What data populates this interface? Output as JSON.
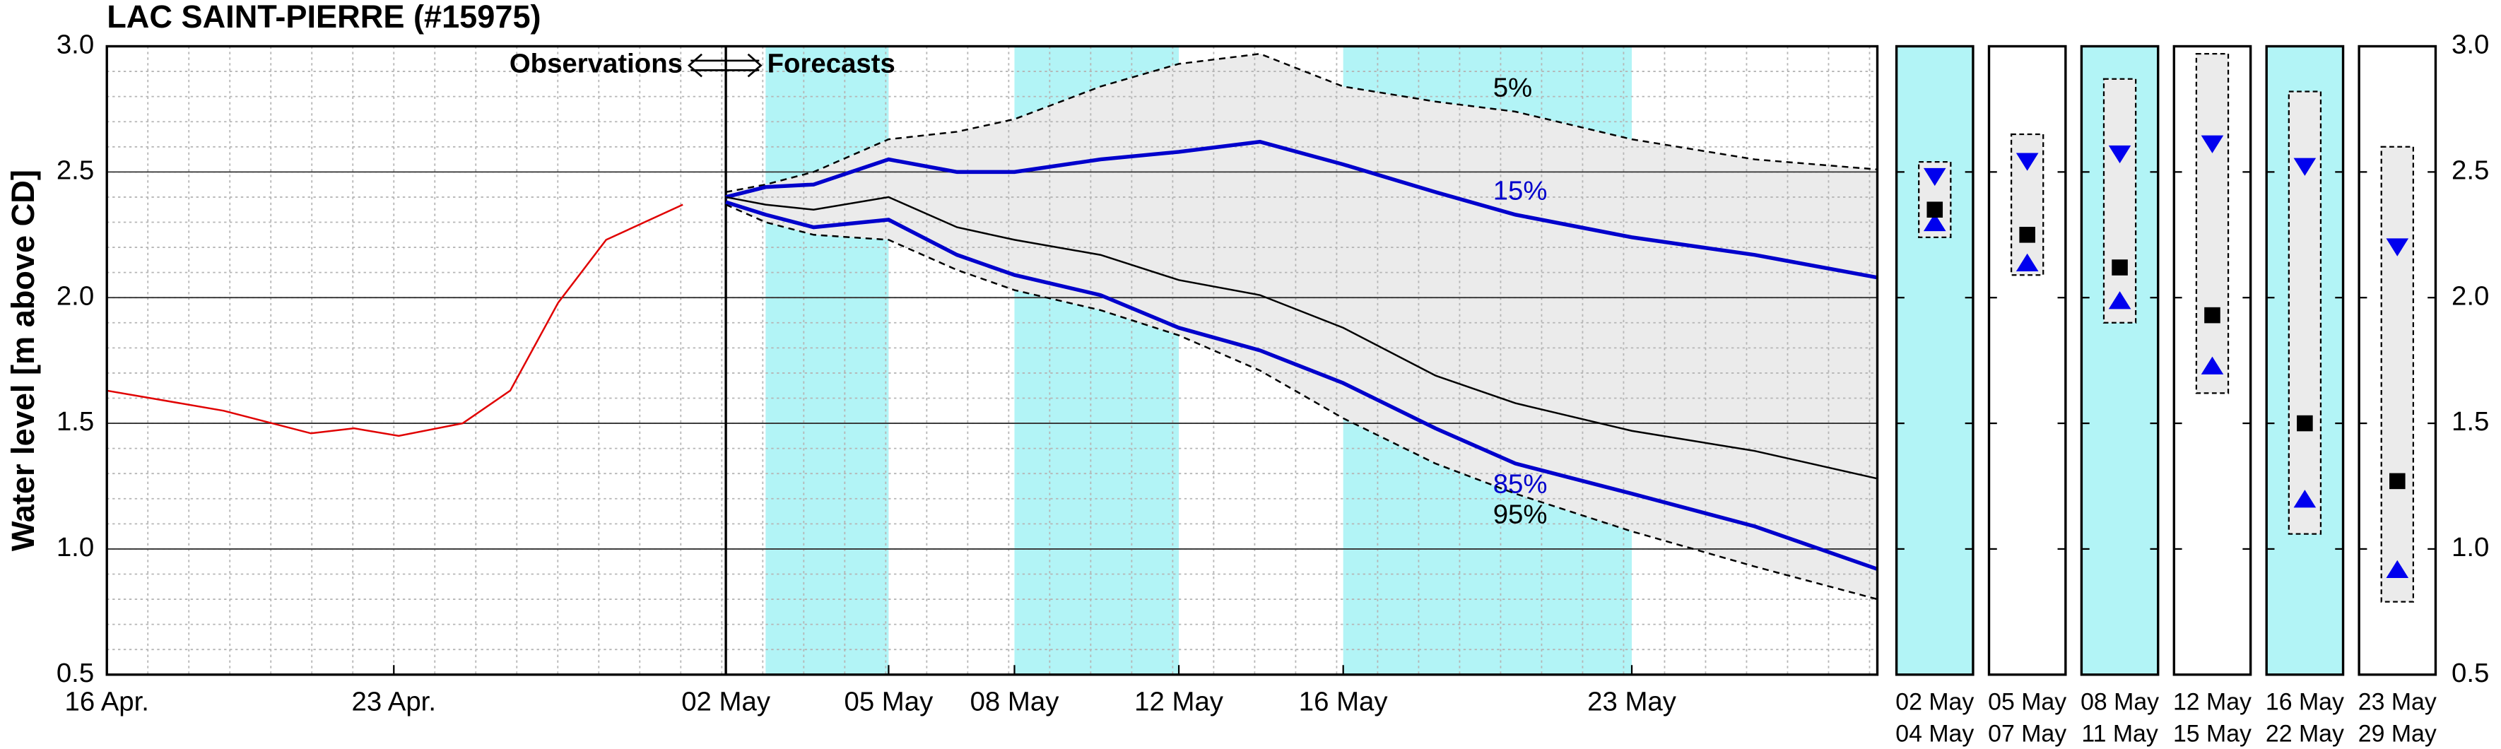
{
  "chart_data": [
    {
      "type": "line",
      "title": "LAC SAINT-PIERRE (#15975)",
      "y_label": "Water level [m above CD]",
      "annotation_left": "Observations",
      "annotation_right": "Forecasts",
      "divider_x": 15.1,
      "xlim": [
        0,
        43.19
      ],
      "xticks": [
        {
          "value": 0,
          "label": "16 Apr."
        },
        {
          "value": 7,
          "label": "23 Apr."
        },
        {
          "value": 15.1,
          "label": "02 May"
        },
        {
          "value": 19.07,
          "label": "05 May"
        },
        {
          "value": 22.14,
          "label": "08 May"
        },
        {
          "value": 26.15,
          "label": "12 May"
        },
        {
          "value": 30.16,
          "label": "16 May"
        },
        {
          "value": 37.2,
          "label": "23 May"
        }
      ],
      "ylim": [
        0.5,
        3.0
      ],
      "yticks": [
        0.5,
        {
          "value": 1.0,
          "label": "1.0"
        },
        1.5,
        {
          "value": 2.0,
          "label": "2.0"
        },
        2.5,
        {
          "value": 3.0,
          "label": "3.0"
        }
      ],
      "grid": true,
      "minor_grid": {
        "x": 1,
        "y": 0.1
      },
      "shaded_periods": [
        [
          16.07,
          19.07
        ],
        [
          22.14,
          26.15
        ],
        [
          30.16,
          37.2
        ]
      ],
      "shade_color": "#b2f4f6",
      "band_color": "#ebebeb",
      "series": [
        {
          "color": "#e00000",
          "x": [
            0,
            2.85,
            4.98,
            6.03,
            7.12,
            8.68,
            9.84,
            11.01,
            12.18,
            14.05
          ],
          "values": [
            1.63,
            1.55,
            1.46,
            1.48,
            1.45,
            1.5,
            1.63,
            1.98,
            2.23,
            2.37
          ]
        },
        {
          "name": "5%",
          "color": "#000000",
          "dashed": true,
          "x": [
            15.1,
            16.07,
            17.24,
            19.07,
            20.74,
            22.14,
            24.24,
            26.15,
            28.13,
            30.16,
            32.41,
            34.36,
            37.2,
            40.2,
            43.19
          ],
          "values": [
            2.42,
            2.45,
            2.5,
            2.63,
            2.66,
            2.71,
            2.84,
            2.93,
            2.97,
            2.84,
            2.78,
            2.74,
            2.63,
            2.55,
            2.51
          ]
        },
        {
          "name": "15%",
          "color": "#0000cc",
          "x": [
            15.1,
            16.07,
            17.24,
            19.07,
            20.74,
            22.14,
            24.24,
            26.15,
            28.13,
            30.16,
            32.41,
            34.36,
            37.2,
            40.2,
            43.19
          ],
          "values": [
            2.4,
            2.44,
            2.45,
            2.55,
            2.5,
            2.5,
            2.55,
            2.58,
            2.62,
            2.53,
            2.42,
            2.33,
            2.24,
            2.17,
            2.08
          ]
        },
        {
          "color": "#000000",
          "x": [
            15.1,
            16.07,
            17.24,
            19.07,
            20.74,
            22.14,
            24.24,
            26.15,
            28.13,
            30.16,
            32.41,
            34.36,
            37.2,
            40.2,
            43.19
          ],
          "values": [
            2.4,
            2.37,
            2.35,
            2.4,
            2.28,
            2.23,
            2.17,
            2.07,
            2.01,
            1.88,
            1.69,
            1.58,
            1.47,
            1.39,
            1.28
          ]
        },
        {
          "name": "85%",
          "color": "#0000cc",
          "x": [
            15.1,
            16.07,
            17.24,
            19.07,
            20.74,
            22.14,
            24.24,
            26.15,
            28.13,
            30.16,
            32.41,
            34.36,
            37.2,
            40.2,
            43.19
          ],
          "values": [
            2.38,
            2.33,
            2.28,
            2.31,
            2.17,
            2.09,
            2.01,
            1.88,
            1.79,
            1.66,
            1.48,
            1.34,
            1.22,
            1.09,
            0.92
          ]
        },
        {
          "name": "95%",
          "color": "#000000",
          "dashed": true,
          "x": [
            15.1,
            16.07,
            17.24,
            19.07,
            20.74,
            22.14,
            24.24,
            26.15,
            28.13,
            30.16,
            32.41,
            34.36,
            37.2,
            40.2,
            43.19
          ],
          "values": [
            2.37,
            2.3,
            2.25,
            2.23,
            2.11,
            2.03,
            1.95,
            1.85,
            1.71,
            1.52,
            1.34,
            1.22,
            1.07,
            0.93,
            0.8
          ]
        }
      ]
    },
    {
      "type": "range",
      "ylim": [
        0.5,
        3.0
      ],
      "yticks": [
        0.5,
        {
          "value": 1.0,
          "label": "1.0"
        },
        1.5,
        {
          "value": 2.0,
          "label": "2.0"
        },
        2.5,
        {
          "value": 3.0,
          "label": "3.0"
        }
      ],
      "start_labels": [
        "02 May",
        "05 May",
        "08 May",
        "12 May",
        "16 May",
        "23 May"
      ],
      "end_labels": [
        "04 May",
        "07 May",
        "11 May",
        "15 May",
        "22 May",
        "29 May"
      ],
      "shaded": [
        true,
        false,
        true,
        false,
        true,
        false
      ],
      "shade_color": "#b2f4f6",
      "box_color": "#ebebeb",
      "marker_color": "#0000ee",
      "p05": [
        2.54,
        2.65,
        2.87,
        2.97,
        2.82,
        2.6
      ],
      "p15": [
        2.48,
        2.54,
        2.57,
        2.61,
        2.52,
        2.2
      ],
      "median": [
        2.35,
        2.25,
        2.12,
        1.93,
        1.5,
        1.27
      ],
      "p85": [
        2.3,
        2.14,
        1.99,
        1.73,
        1.2,
        0.92
      ],
      "p95": [
        2.24,
        2.09,
        1.9,
        1.62,
        1.06,
        0.79
      ]
    }
  ]
}
